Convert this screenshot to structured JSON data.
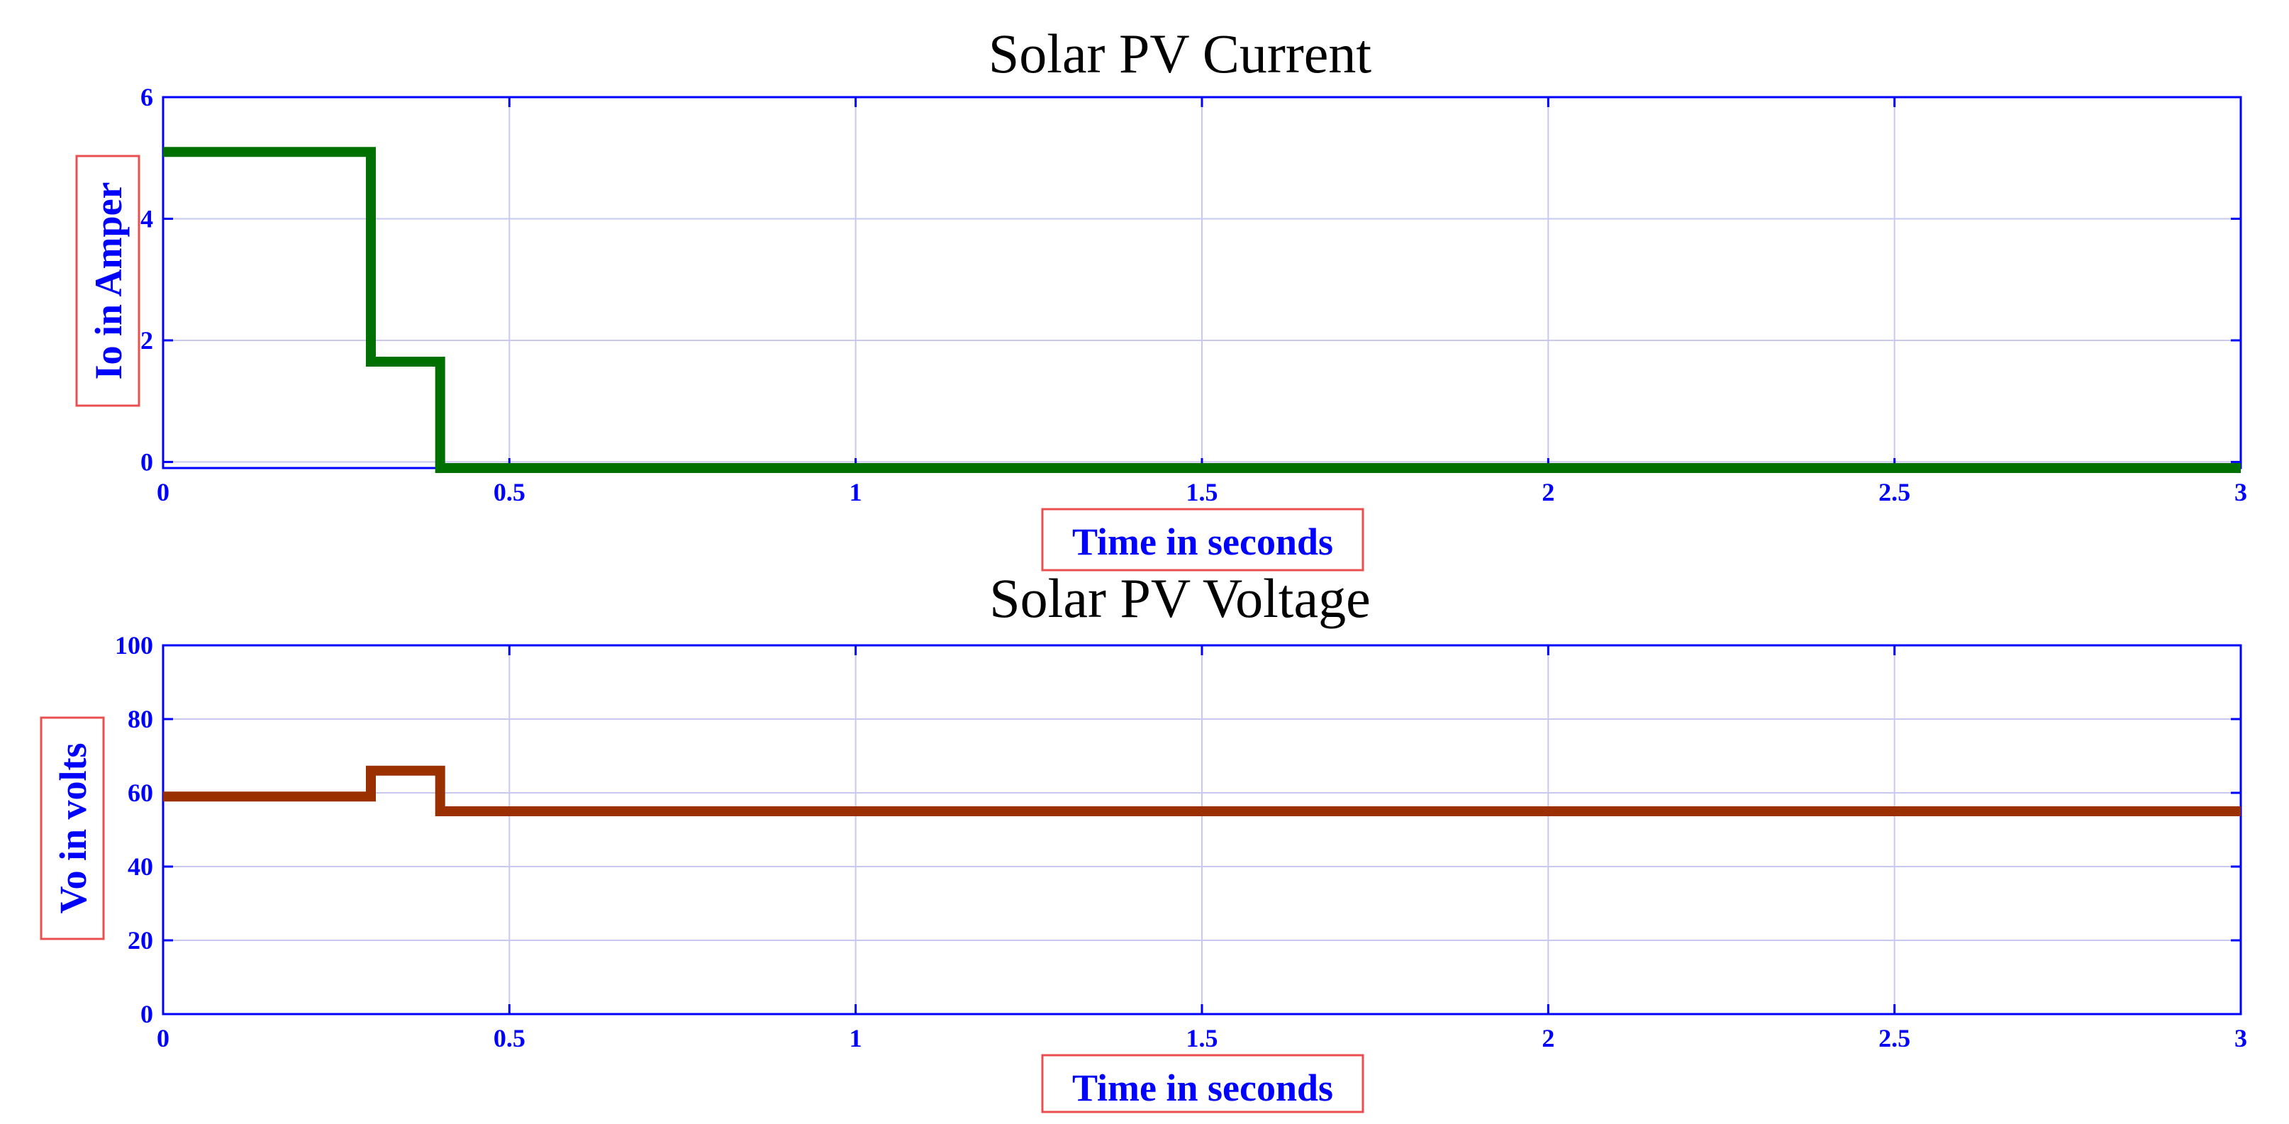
{
  "chart_data": [
    {
      "type": "line",
      "title": "Solar PV Current",
      "xlabel": "Time in seconds",
      "ylabel": "Io in Amper",
      "xlim": [
        0,
        3
      ],
      "ylim": [
        -0.1,
        6
      ],
      "x_ticks": [
        0,
        0.5,
        1,
        1.5,
        2,
        2.5,
        3
      ],
      "x_tick_labels": [
        "0",
        "0.5",
        "1",
        "1.5",
        "2",
        "2.5",
        "3"
      ],
      "y_ticks": [
        0,
        2,
        4,
        6
      ],
      "y_tick_labels": [
        "0",
        "2",
        "4",
        "6"
      ],
      "grid": true,
      "series": [
        {
          "color": "#007000",
          "x": [
            0,
            0.3,
            0.3,
            0.4,
            0.4,
            3
          ],
          "y": [
            5.1,
            5.1,
            1.65,
            1.65,
            -0.1,
            -0.1
          ]
        }
      ]
    },
    {
      "type": "line",
      "title": "Solar PV Voltage",
      "xlabel": "Time in seconds",
      "ylabel": "Vo in volts",
      "xlim": [
        0,
        3
      ],
      "ylim": [
        0,
        100
      ],
      "x_ticks": [
        0,
        0.5,
        1,
        1.5,
        2,
        2.5,
        3
      ],
      "x_tick_labels": [
        "0",
        "0.5",
        "1",
        "1.5",
        "2",
        "2.5",
        "3"
      ],
      "y_ticks": [
        0,
        20,
        40,
        60,
        80,
        100
      ],
      "y_tick_labels": [
        "0",
        "20",
        "40",
        "60",
        "80",
        "100"
      ],
      "grid": true,
      "series": [
        {
          "color": "#9a3000",
          "x": [
            0,
            0.3,
            0.3,
            0.4,
            0.4,
            3
          ],
          "y": [
            59,
            59,
            66,
            66,
            55,
            55
          ]
        }
      ]
    }
  ],
  "style": {
    "axis_color": "#0000ff",
    "grid_color": "#c8c8f0",
    "label_box_color": "#e85050",
    "tick_label_color": "#0000ff",
    "title_color": "#000000"
  }
}
